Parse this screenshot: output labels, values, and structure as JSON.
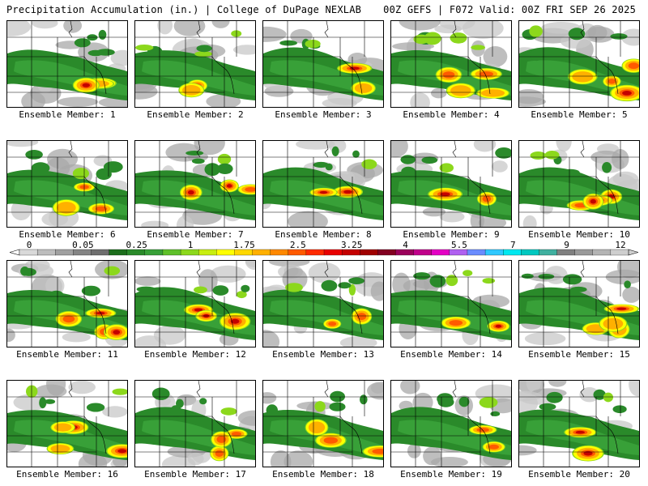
{
  "header": {
    "title": "Precipitation Accumulation (in.) | College of DuPage NEXLAB",
    "run_info": "00Z GEFS | F072 Valid: 00Z FRI SEP 26 2025"
  },
  "colorbar": {
    "tick_labels": [
      "0",
      "0.05",
      "0.25",
      "1",
      "1.75",
      "2.5",
      "3.25",
      "4",
      "5.5",
      "7",
      "9",
      "12"
    ],
    "colors": [
      "#d9d9d9",
      "#bdbdbd",
      "#a0a0a0",
      "#848484",
      "#6f6f6f",
      "#1c6e1c",
      "#2a8a2a",
      "#38a038",
      "#5fc02a",
      "#8cd81c",
      "#c8ee10",
      "#ffff00",
      "#ffd800",
      "#ffb000",
      "#ff8800",
      "#ff5a00",
      "#ff2a00",
      "#e80000",
      "#c40000",
      "#a00000",
      "#820020",
      "#9a005a",
      "#c0008a",
      "#e400c4",
      "#b060f0",
      "#6a8cff",
      "#30c8ff",
      "#00e8f0",
      "#00c8c0",
      "#40b0a0",
      "#808080",
      "#9a9a9a",
      "#b4b4b4",
      "#cecece"
    ]
  },
  "members": [
    {
      "label": "Ensemble Member: 1"
    },
    {
      "label": "Ensemble Member: 2"
    },
    {
      "label": "Ensemble Member: 3"
    },
    {
      "label": "Ensemble Member: 4"
    },
    {
      "label": "Ensemble Member: 5"
    },
    {
      "label": "Ensemble Member: 6"
    },
    {
      "label": "Ensemble Member: 7"
    },
    {
      "label": "Ensemble Member: 8"
    },
    {
      "label": "Ensemble Member: 9"
    },
    {
      "label": "Ensemble Member: 10"
    },
    {
      "label": "Ensemble Member: 11"
    },
    {
      "label": "Ensemble Member: 12"
    },
    {
      "label": "Ensemble Member: 13"
    },
    {
      "label": "Ensemble Member: 14"
    },
    {
      "label": "Ensemble Member: 15"
    },
    {
      "label": "Ensemble Member: 16"
    },
    {
      "label": "Ensemble Member: 17"
    },
    {
      "label": "Ensemble Member: 18"
    },
    {
      "label": "Ensemble Member: 19"
    },
    {
      "label": "Ensemble Member: 20"
    }
  ]
}
